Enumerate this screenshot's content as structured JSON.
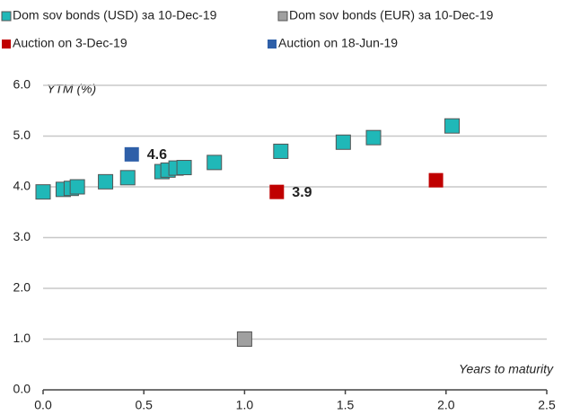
{
  "chart_data": {
    "type": "scatter",
    "x_label": "Years to maturity",
    "y_label": "YTM (%)",
    "xlim": [
      0,
      2.5
    ],
    "ylim": [
      0,
      6
    ],
    "xticks": [
      {
        "value": 0,
        "label": "0.0"
      },
      {
        "value": 0.5,
        "label": "0.5"
      },
      {
        "value": 1,
        "label": "1.0"
      },
      {
        "value": 1.5,
        "label": "1.5"
      },
      {
        "value": 2,
        "label": "2.0"
      },
      {
        "value": 2.5,
        "label": "2.5"
      }
    ],
    "yticks": [
      {
        "value": 0,
        "label": "0.0"
      },
      {
        "value": 1,
        "label": "1.0"
      },
      {
        "value": 2,
        "label": "2.0"
      },
      {
        "value": 3,
        "label": "3.0"
      },
      {
        "value": 4,
        "label": "4.0"
      },
      {
        "value": 5,
        "label": "5.0"
      },
      {
        "value": 6,
        "label": "6.0"
      }
    ],
    "grid": true,
    "series": [
      {
        "name": "Dom sov bonds (USD) за 10-Dec-19",
        "color": "#20b8b8",
        "x": [
          0.0,
          0.1,
          0.14,
          0.17,
          0.31,
          0.42,
          0.59,
          0.62,
          0.66,
          0.7,
          0.85,
          1.18,
          1.49,
          1.64,
          2.03
        ],
        "values": [
          3.9,
          3.95,
          3.97,
          4.0,
          4.1,
          4.18,
          4.3,
          4.33,
          4.37,
          4.38,
          4.48,
          4.7,
          4.88,
          4.97,
          5.2
        ]
      },
      {
        "name": "Dom sov bonds (EUR) за 10-Dec-19",
        "color": "#a0a0a0",
        "x": [
          1.0
        ],
        "values": [
          1.0
        ]
      },
      {
        "name": "Auction on 3-Dec-19",
        "color": "#c00000",
        "x": [
          1.16,
          1.95
        ],
        "values": [
          3.9,
          4.13
        ],
        "value_labels": [
          "3.9",
          null
        ]
      },
      {
        "name": "Auction on 18-Jun-19",
        "color": "#2e5fa8",
        "x": [
          0.44
        ],
        "values": [
          4.64
        ],
        "value_labels": [
          "4.6"
        ]
      }
    ]
  }
}
